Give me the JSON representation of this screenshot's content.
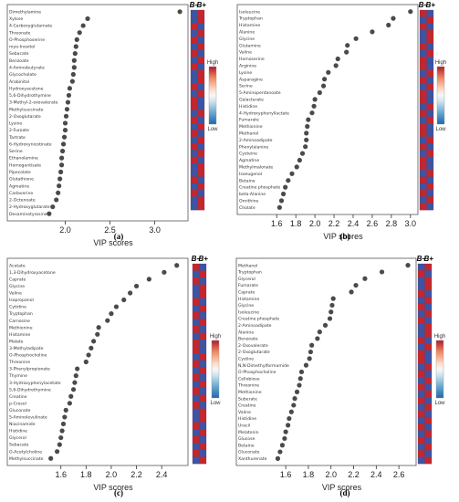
{
  "figure": {
    "heatmap_headers": [
      "B–",
      "B+"
    ],
    "legend_high": "High",
    "legend_low": "Low",
    "legend_colors": [
      "#b2182b",
      "#ef8a62",
      "#fddbc7",
      "#f7f7f7",
      "#d1e5f0",
      "#67a9cf",
      "#2166ac"
    ]
  },
  "chart_data": [
    {
      "panel": "(a)",
      "type": "scatter",
      "xlabel": "VIP scores",
      "xticks": [
        2.0,
        2.5,
        3.0
      ],
      "xlim": [
        1.74,
        3.33
      ],
      "categories": [
        "Dimethylamine",
        "Xylose",
        "4-Carboxyglutamate",
        "Threonate",
        "O-Phosphoserine",
        "myo-Inositol",
        "Sebacate",
        "Benzoate",
        "4-Aminobutyrate",
        "Glycocholate",
        "Arabinitol",
        "Hydroxyacetone",
        "5,6-Dihydrothymine",
        "3-Methyl-2-oxovalerate",
        "Methylsuccinate",
        "2-Oxoglutarate",
        "Lysine",
        "2-Furoate",
        "Tartrate",
        "6-Hydroxynicotinate",
        "Serine",
        "Ethanolamine",
        "Homogentisate",
        "Pipecolate",
        "Glutathione",
        "Agmatine",
        "Cadaverine",
        "2-Octenoate",
        "2-Hydroxyglutarate",
        "Desaminotyrosine"
      ],
      "values": [
        3.28,
        2.25,
        2.2,
        2.16,
        2.13,
        2.12,
        2.11,
        2.1,
        2.1,
        2.09,
        2.08,
        2.05,
        2.04,
        2.03,
        2.02,
        2.01,
        2.0,
        2.0,
        1.99,
        1.98,
        1.97,
        1.96,
        1.96,
        1.95,
        1.94,
        1.93,
        1.92,
        1.9,
        1.86,
        1.82
      ],
      "heatmap": [
        [
          "L",
          "H"
        ],
        [
          "L",
          "H"
        ],
        [
          "H",
          "L"
        ],
        [
          "L",
          "H"
        ],
        [
          "H",
          "L"
        ],
        [
          "L",
          "H"
        ],
        [
          "H",
          "L"
        ],
        [
          "L",
          "H"
        ],
        [
          "H",
          "L"
        ],
        [
          "L",
          "H"
        ],
        [
          "L",
          "H"
        ],
        [
          "H",
          "L"
        ],
        [
          "L",
          "H"
        ],
        [
          "H",
          "L"
        ],
        [
          "H",
          "L"
        ],
        [
          "L",
          "H"
        ],
        [
          "H",
          "L"
        ],
        [
          "L",
          "H"
        ],
        [
          "H",
          "L"
        ],
        [
          "L",
          "H"
        ],
        [
          "H",
          "L"
        ],
        [
          "L",
          "H"
        ],
        [
          "H",
          "L"
        ],
        [
          "L",
          "H"
        ],
        [
          "L",
          "H"
        ],
        [
          "H",
          "L"
        ],
        [
          "L",
          "H"
        ],
        [
          "H",
          "L"
        ],
        [
          "L",
          "H"
        ],
        [
          "L",
          "H"
        ]
      ]
    },
    {
      "panel": "(b)",
      "type": "scatter",
      "xlabel": "VIP scores",
      "xticks": [
        1.6,
        1.8,
        2.0,
        2.2,
        2.4,
        2.6,
        2.8,
        3.0
      ],
      "xlim": [
        1.55,
        3.04
      ],
      "categories": [
        "Isoleucine",
        "Tryptophan",
        "Histamine",
        "Alanine",
        "Glycine",
        "Glutamine",
        "Valine",
        "Homoserine",
        "Arginine",
        "Lysine",
        "Asparagine",
        "Serine",
        "5-Aminopentanoate",
        "Galactarate",
        "Histidine",
        "4-Hydroxyphenyllactate",
        "Fumarate",
        "Methionine",
        "Methanol",
        "2-Aminoadipate",
        "Phenylalanine",
        "Cysteine",
        "Agmatine",
        "Methylmalonate",
        "Isoeugenol",
        "Betaine",
        "Creatine phosphate",
        "beta-Alanine",
        "Ornithine",
        "Cholate"
      ],
      "values": [
        3.0,
        2.82,
        2.77,
        2.6,
        2.43,
        2.34,
        2.33,
        2.24,
        2.22,
        2.14,
        2.1,
        2.09,
        2.05,
        2.0,
        1.99,
        1.97,
        1.93,
        1.92,
        1.91,
        1.91,
        1.9,
        1.87,
        1.84,
        1.81,
        1.76,
        1.72,
        1.69,
        1.67,
        1.65,
        1.63
      ],
      "heatmap": [
        [
          "H",
          "L"
        ],
        [
          "L",
          "H"
        ],
        [
          "H",
          "L"
        ],
        [
          "L",
          "H"
        ],
        [
          "L",
          "H"
        ],
        [
          "H",
          "L"
        ],
        [
          "L",
          "H"
        ],
        [
          "H",
          "L"
        ],
        [
          "H",
          "L"
        ],
        [
          "L",
          "H"
        ],
        [
          "H",
          "L"
        ],
        [
          "L",
          "H"
        ],
        [
          "H",
          "L"
        ],
        [
          "H",
          "L"
        ],
        [
          "L",
          "H"
        ],
        [
          "H",
          "L"
        ],
        [
          "L",
          "H"
        ],
        [
          "H",
          "L"
        ],
        [
          "H",
          "L"
        ],
        [
          "L",
          "H"
        ],
        [
          "H",
          "L"
        ],
        [
          "L",
          "H"
        ],
        [
          "H",
          "L"
        ],
        [
          "H",
          "L"
        ],
        [
          "L",
          "H"
        ],
        [
          "H",
          "L"
        ],
        [
          "L",
          "H"
        ],
        [
          "H",
          "L"
        ],
        [
          "L",
          "H"
        ],
        [
          "H",
          "L"
        ]
      ]
    },
    {
      "panel": "(c)",
      "type": "scatter",
      "xlabel": "VIP scores",
      "xticks": [
        1.6,
        1.8,
        2.0,
        2.2,
        2.4
      ],
      "xlim": [
        1.45,
        2.58
      ],
      "categories": [
        "Acetate",
        "1,3-Dihydroxyacetone",
        "Caprate",
        "Glycine",
        "Valine",
        "Isopropanol",
        "Cytidine",
        "Tryptophan",
        "Carnosine",
        "Methionine",
        "Histamine",
        "Malate",
        "3-Methyladipate",
        "O-Phosphocholine",
        "Threonine",
        "3-Phenylpropionate",
        "Thymine",
        "3-Hydroxyphenylacetate",
        "5,6-Dihydrothymine",
        "Creatine",
        "p-Cresol",
        "Gluconate",
        "5-Aminolevulinate",
        "Niacinamide",
        "Histidine",
        "Glycerol",
        "Sebacate",
        "O-Acetylcholine",
        "Methylsuccinate"
      ],
      "values": [
        2.52,
        2.42,
        2.3,
        2.2,
        2.15,
        2.1,
        2.04,
        2.0,
        1.97,
        1.9,
        1.89,
        1.86,
        1.84,
        1.82,
        1.8,
        1.73,
        1.72,
        1.71,
        1.7,
        1.68,
        1.67,
        1.64,
        1.63,
        1.62,
        1.61,
        1.6,
        1.59,
        1.57,
        1.52
      ],
      "heatmap": [
        [
          "H",
          "L"
        ],
        [
          "L",
          "H"
        ],
        [
          "H",
          "L"
        ],
        [
          "L",
          "H"
        ],
        [
          "L",
          "H"
        ],
        [
          "H",
          "L"
        ],
        [
          "L",
          "H"
        ],
        [
          "H",
          "L"
        ],
        [
          "L",
          "H"
        ],
        [
          "H",
          "L"
        ],
        [
          "L",
          "H"
        ],
        [
          "H",
          "L"
        ],
        [
          "H",
          "L"
        ],
        [
          "L",
          "H"
        ],
        [
          "H",
          "L"
        ],
        [
          "L",
          "H"
        ],
        [
          "H",
          "L"
        ],
        [
          "L",
          "H"
        ],
        [
          "H",
          "L"
        ],
        [
          "L",
          "H"
        ],
        [
          "H",
          "L"
        ],
        [
          "L",
          "H"
        ],
        [
          "L",
          "H"
        ],
        [
          "H",
          "L"
        ],
        [
          "L",
          "H"
        ],
        [
          "H",
          "L"
        ],
        [
          "L",
          "H"
        ],
        [
          "H",
          "L"
        ],
        [
          "L",
          "H"
        ]
      ]
    },
    {
      "panel": "(d)",
      "type": "scatter",
      "xlabel": "VIP scores",
      "xticks": [
        1.6,
        1.8,
        2.0,
        2.2,
        2.4,
        2.6
      ],
      "xlim": [
        1.47,
        2.72
      ],
      "categories": [
        "Methanol",
        "Tryptophan",
        "Glycerol",
        "Fumarate",
        "Caprate",
        "Histamine",
        "Glycine",
        "Isoleucine",
        "Creatine phosphate",
        "2-Aminoadipate",
        "Alanine",
        "Benzoate",
        "2-Oxovalerate",
        "2-Oxoglutarate",
        "Cystine",
        "N,N-Dimethylformamide",
        "O-Phosphocholine",
        "Cellobiose",
        "Threonine",
        "Methionine",
        "Suberate",
        "Creatine",
        "Valine",
        "Histidine",
        "Uracil",
        "Melatonin",
        "Glucose",
        "Betaine",
        "Gluconate",
        "Xanthurenate"
      ],
      "values": [
        2.68,
        2.45,
        2.3,
        2.22,
        2.18,
        2.02,
        2.01,
        2.0,
        1.99,
        1.95,
        1.9,
        1.88,
        1.83,
        1.82,
        1.81,
        1.78,
        1.74,
        1.73,
        1.72,
        1.7,
        1.68,
        1.67,
        1.65,
        1.63,
        1.62,
        1.6,
        1.59,
        1.57,
        1.55,
        1.53
      ],
      "heatmap": [
        [
          "L",
          "H"
        ],
        [
          "H",
          "L"
        ],
        [
          "L",
          "H"
        ],
        [
          "L",
          "H"
        ],
        [
          "H",
          "L"
        ],
        [
          "L",
          "H"
        ],
        [
          "H",
          "L"
        ],
        [
          "L",
          "H"
        ],
        [
          "H",
          "L"
        ],
        [
          "L",
          "H"
        ],
        [
          "L",
          "H"
        ],
        [
          "H",
          "L"
        ],
        [
          "L",
          "H"
        ],
        [
          "H",
          "L"
        ],
        [
          "H",
          "L"
        ],
        [
          "L",
          "H"
        ],
        [
          "H",
          "L"
        ],
        [
          "L",
          "H"
        ],
        [
          "H",
          "L"
        ],
        [
          "L",
          "H"
        ],
        [
          "H",
          "L"
        ],
        [
          "L",
          "H"
        ],
        [
          "H",
          "L"
        ],
        [
          "L",
          "H"
        ],
        [
          "H",
          "L"
        ],
        [
          "L",
          "H"
        ],
        [
          "H",
          "L"
        ],
        [
          "L",
          "H"
        ],
        [
          "H",
          "L"
        ],
        [
          "L",
          "H"
        ]
      ]
    }
  ]
}
